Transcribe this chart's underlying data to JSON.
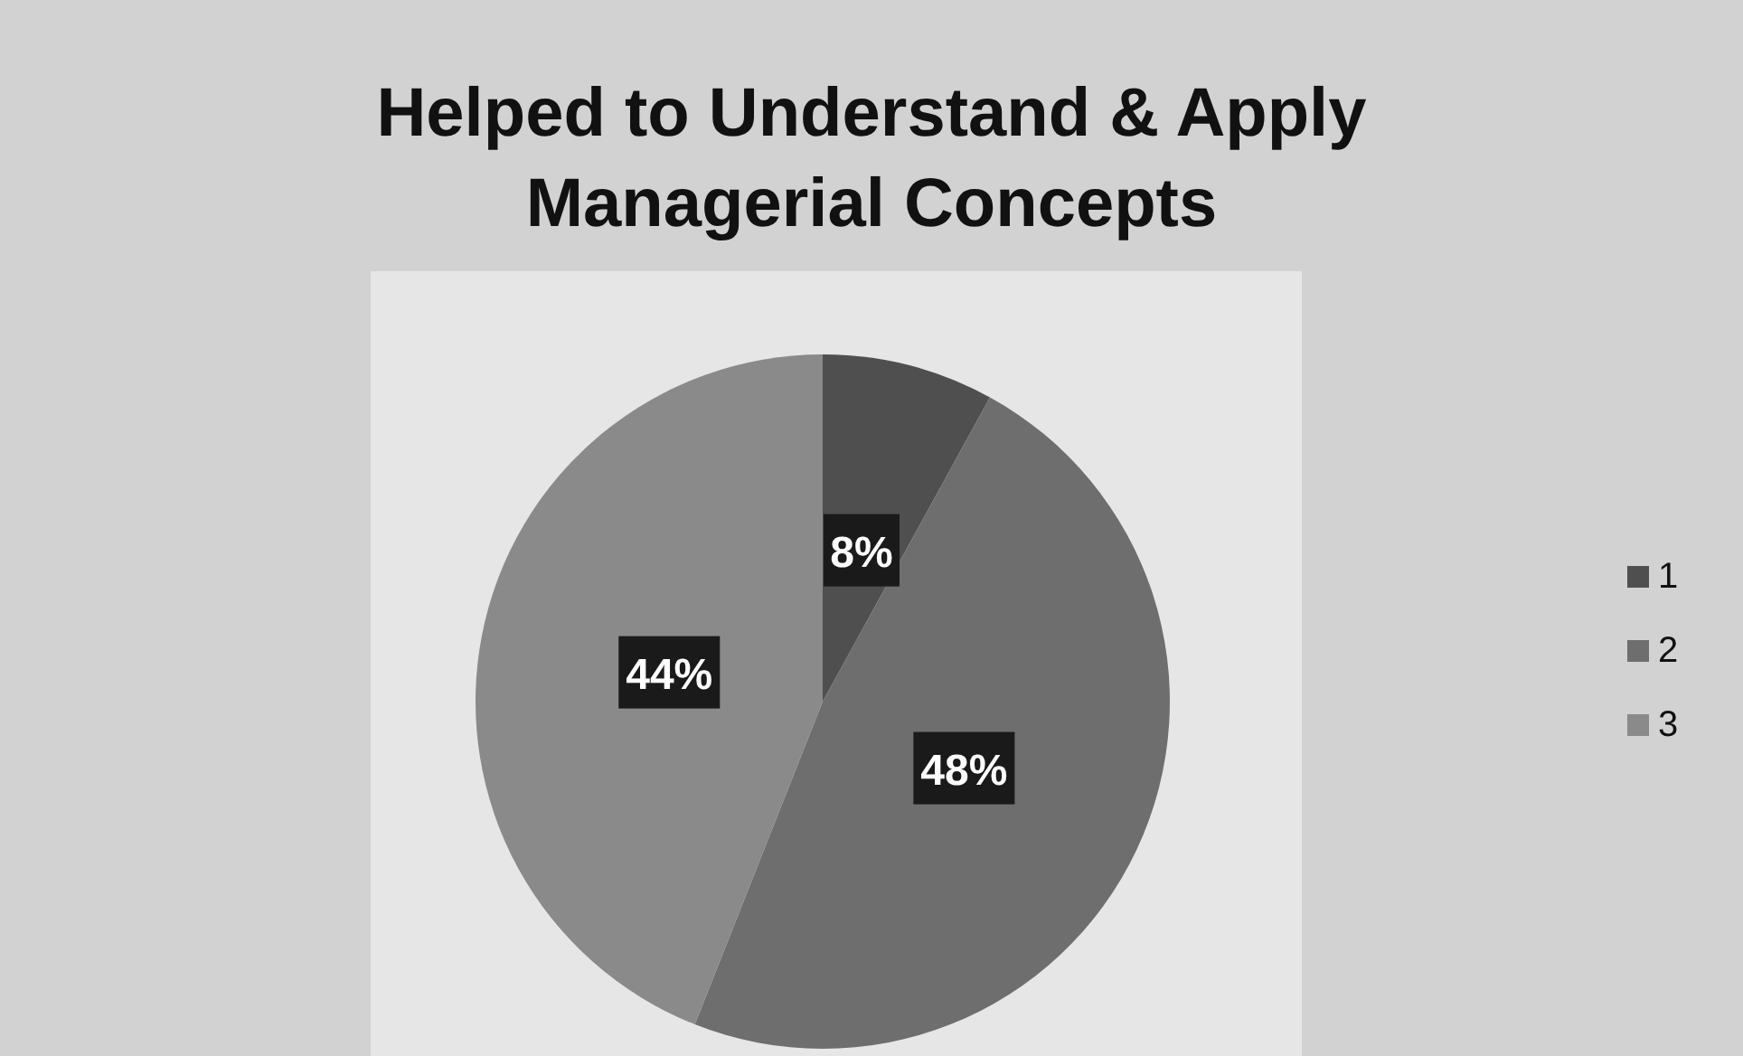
{
  "chart_data": {
    "type": "pie",
    "title": "Helped to Understand & Apply\nManagerial Concepts",
    "categories": [
      "1",
      "2",
      "3"
    ],
    "values": [
      8,
      48,
      44
    ],
    "colors": [
      "#4f4f4f",
      "#6e6e6e",
      "#8a8a8a"
    ],
    "value_labels": [
      "8%",
      "48%",
      "44%"
    ],
    "legend": "right"
  }
}
